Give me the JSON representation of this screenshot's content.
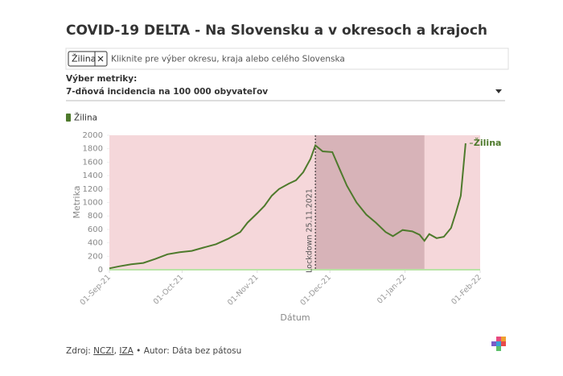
{
  "chart_data": {
    "type": "line",
    "title": "COVID-19 DELTA - Na Slovensku a v okresoch a krajoch",
    "selected_chip": "Žilina",
    "search_placeholder": "Kliknite pre výber okresu, kraja alebo celého Slovenska",
    "metric_label": "Výber metriky:",
    "metric_value": "7-dňová incidencia na 100 000 obyvateľov",
    "x_label": "Dátum",
    "y_label": "Metrika",
    "x": [
      "2021-09-01",
      "2021-09-05",
      "2021-09-10",
      "2021-09-15",
      "2021-09-20",
      "2021-09-25",
      "2021-09-30",
      "2021-10-05",
      "2021-10-10",
      "2021-10-15",
      "2021-10-20",
      "2021-10-25",
      "2021-10-28",
      "2021-11-01",
      "2021-11-04",
      "2021-11-07",
      "2021-11-10",
      "2021-11-14",
      "2021-11-17",
      "2021-11-20",
      "2021-11-23",
      "2021-11-25",
      "2021-11-28",
      "2021-12-02",
      "2021-12-05",
      "2021-12-08",
      "2021-12-12",
      "2021-12-16",
      "2021-12-20",
      "2021-12-24",
      "2021-12-27",
      "2021-12-31",
      "2022-01-04",
      "2022-01-07",
      "2022-01-09",
      "2022-01-11",
      "2022-01-14",
      "2022-01-17",
      "2022-01-20",
      "2022-01-22",
      "2022-01-24",
      "2022-01-26"
    ],
    "series": [
      {
        "name": "Žilina",
        "color": "#4e7a2c",
        "values": [
          20,
          50,
          80,
          100,
          160,
          230,
          260,
          280,
          330,
          380,
          460,
          560,
          700,
          840,
          950,
          1100,
          1200,
          1280,
          1330,
          1450,
          1650,
          1850,
          1760,
          1750,
          1500,
          1250,
          1000,
          820,
          700,
          560,
          500,
          590,
          570,
          520,
          430,
          530,
          470,
          490,
          620,
          850,
          1100,
          1880
        ]
      }
    ],
    "xlim": [
      "2021-09-01",
      "2022-02-01"
    ],
    "xticks": [
      {
        "value": "2021-09-01",
        "label": "01-Sep-21"
      },
      {
        "value": "2021-10-01",
        "label": "01-Oct-21"
      },
      {
        "value": "2021-11-01",
        "label": "01-Nov-21"
      },
      {
        "value": "2021-12-01",
        "label": "01-Dec-21"
      },
      {
        "value": "2022-01-01",
        "label": "01-Jan-22"
      },
      {
        "value": "2022-02-01",
        "label": "01-Feb-22"
      }
    ],
    "ylim": [
      0,
      2000
    ],
    "yticks": [
      0,
      200,
      400,
      600,
      800,
      1000,
      1200,
      1400,
      1600,
      1800,
      2000
    ],
    "grid": false,
    "plot_background": "#f5d7da",
    "shaded_range": [
      "2021-11-25",
      "2022-01-09"
    ],
    "shaded_color": "#d7b3b8",
    "annotation": {
      "x": "2021-11-25",
      "label": "Lockdown 25.11.2021"
    },
    "source": {
      "prefix": "Zdroj:",
      "links": [
        "NCZI",
        "IZA"
      ],
      "separator": ",",
      "author": "• Autor: Dáta bez pátosu"
    }
  }
}
